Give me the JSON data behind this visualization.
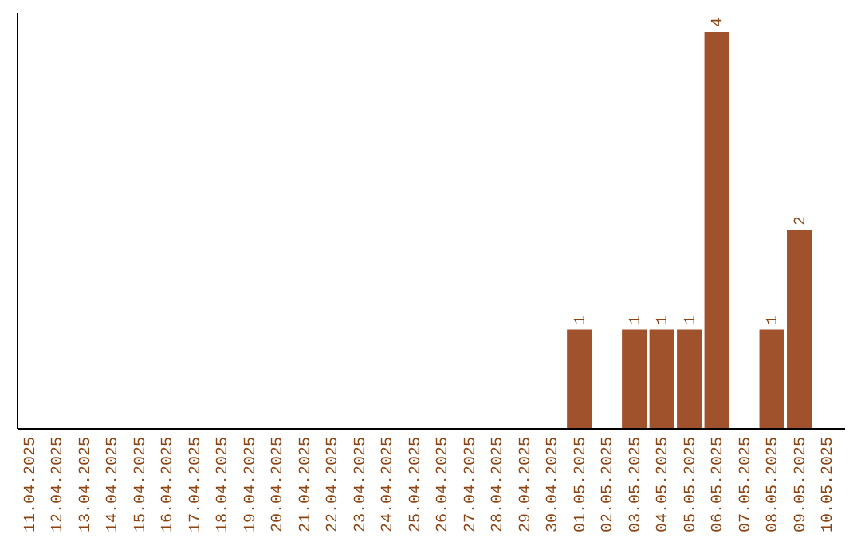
{
  "chart_data": {
    "type": "bar",
    "categories": [
      "11.04.2025",
      "12.04.2025",
      "13.04.2025",
      "14.04.2025",
      "15.04.2025",
      "16.04.2025",
      "17.04.2025",
      "18.04.2025",
      "19.04.2025",
      "20.04.2025",
      "21.04.2025",
      "22.04.2025",
      "23.04.2025",
      "24.04.2025",
      "25.04.2025",
      "26.04.2025",
      "27.04.2025",
      "28.04.2025",
      "29.04.2025",
      "30.04.2025",
      "01.05.2025",
      "02.05.2025",
      "03.05.2025",
      "04.05.2025",
      "05.05.2025",
      "06.05.2025",
      "07.05.2025",
      "08.05.2025",
      "09.05.2025",
      "10.05.2025"
    ],
    "values": [
      null,
      null,
      null,
      null,
      null,
      null,
      null,
      null,
      null,
      null,
      null,
      null,
      null,
      null,
      null,
      null,
      null,
      null,
      null,
      null,
      1,
      null,
      1,
      1,
      1,
      4,
      null,
      1,
      2,
      null
    ],
    "color": "#a0522d",
    "data_labels": true
  }
}
